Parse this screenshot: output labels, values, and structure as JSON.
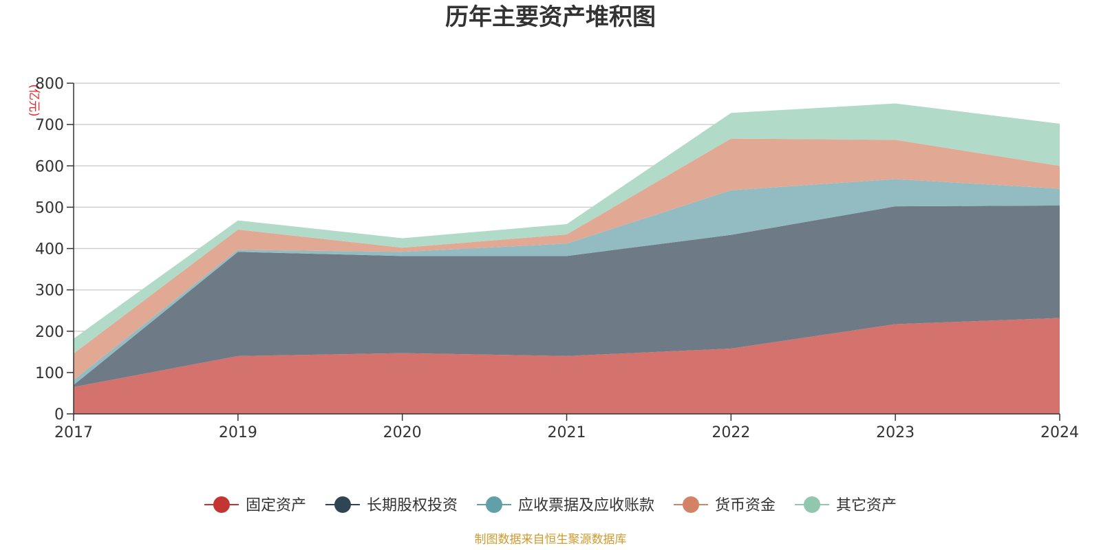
{
  "chart_data": {
    "type": "area",
    "stacked": true,
    "title": "历年主要资产堆积图",
    "unit_label": "(亿元)",
    "x": [
      "2017",
      "2019",
      "2020",
      "2021",
      "2022",
      "2023",
      "2024"
    ],
    "ylim": [
      0,
      800
    ],
    "yticks": [
      0,
      100,
      200,
      300,
      400,
      500,
      600,
      700,
      800
    ],
    "grid": true,
    "legend_position": "bottom",
    "series": [
      {
        "name": "固定资产",
        "color": "#c23531",
        "fill": "#d4726e",
        "values": [
          65,
          140,
          147,
          140,
          158,
          217,
          232
        ]
      },
      {
        "name": "长期股权投资",
        "color": "#2f4554",
        "fill": "#6e7b86",
        "values": [
          5,
          252,
          235,
          242,
          275,
          285,
          272
        ]
      },
      {
        "name": "应收票据及应收账款",
        "color": "#61a0a8",
        "fill": "#92bcc2",
        "values": [
          12,
          5,
          10,
          30,
          108,
          66,
          41
        ]
      },
      {
        "name": "货币资金",
        "color": "#d48265",
        "fill": "#e1a994",
        "values": [
          64,
          49,
          10,
          22,
          125,
          95,
          55
        ]
      },
      {
        "name": "其它资产",
        "color": "#91c7ae",
        "fill": "#b2dac8",
        "values": [
          36,
          22,
          23,
          25,
          62,
          88,
          102
        ]
      }
    ],
    "source": "制图数据来自恒生聚源数据库"
  }
}
